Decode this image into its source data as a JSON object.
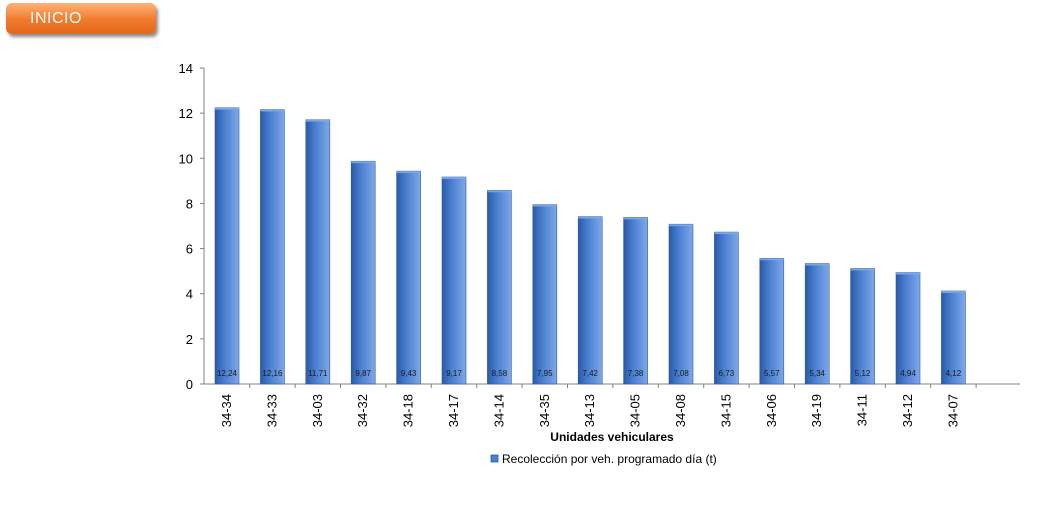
{
  "header": {
    "inicio_label": "INICIO"
  },
  "chart_data": {
    "type": "bar",
    "categories": [
      "34-34",
      "34-33",
      "34-03",
      "34-32",
      "34-18",
      "34-17",
      "34-14",
      "34-35",
      "34-13",
      "34-05",
      "34-08",
      "34-15",
      "34-06",
      "34-19",
      "34-11",
      "34-12",
      "34-07"
    ],
    "series": [
      {
        "name": "Recolección por veh. programado día (t)",
        "values": [
          12.24,
          12.16,
          11.71,
          9.87,
          9.43,
          9.17,
          8.58,
          7.95,
          7.42,
          7.38,
          7.08,
          6.73,
          5.57,
          5.34,
          5.12,
          4.94,
          4.12
        ],
        "data_labels": [
          "12,24",
          "12,16",
          "11,71",
          "9,87",
          "9,43",
          "9,17",
          "8,58",
          "7,95",
          "7,42",
          "7,38",
          "7,08",
          "6,73",
          "5,57",
          "5,34",
          "5,12",
          "4,94",
          "4,12"
        ]
      }
    ],
    "xlabel": "Unidades vehiculares",
    "ylim": [
      0,
      14
    ],
    "yticks": [
      0,
      2,
      4,
      6,
      8,
      10,
      12,
      14
    ],
    "grid": false,
    "legend": "bottom",
    "colors": {
      "bar": "#4a7fd0",
      "bar_dark": "#2a5aa8",
      "bar_light": "#7fa8e8"
    }
  }
}
